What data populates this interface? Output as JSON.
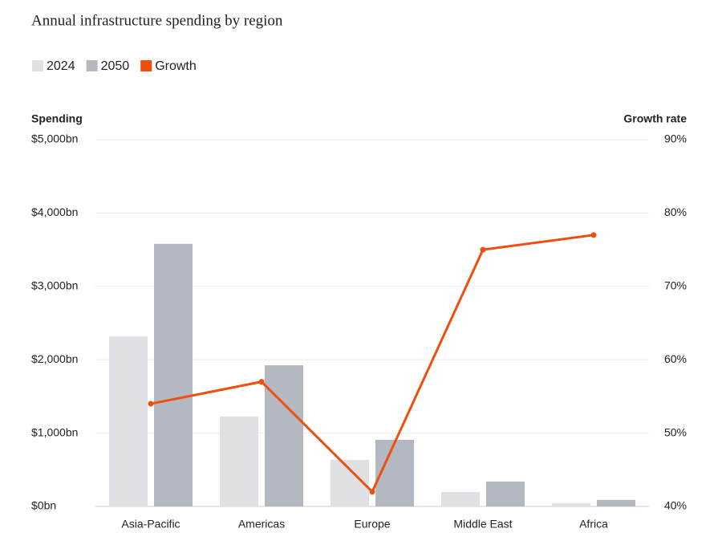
{
  "chart_data": {
    "type": "bar_line",
    "title": "Annual infrastructure spending by region",
    "y_label": "Spending",
    "y2_label": "Growth rate",
    "categories": [
      "Asia-Pacific",
      "Americas",
      "Europe",
      "Middle East",
      "Africa"
    ],
    "series": [
      {
        "name": "2024",
        "type": "bar",
        "color": "#dfe1e4",
        "values": [
          2320,
          1225,
          635,
          197,
          45
        ]
      },
      {
        "name": "2050",
        "type": "bar",
        "color": "#b4b8c0",
        "values": [
          3580,
          1925,
          908,
          340,
          90
        ]
      },
      {
        "name": "Growth",
        "type": "line",
        "axis": "y2",
        "color": "#f04e0e",
        "values": [
          54,
          57,
          42,
          75,
          77
        ]
      }
    ],
    "ylim": [
      0,
      5000
    ],
    "yticks": [
      {
        "value": 0,
        "label": "$0bn"
      },
      {
        "value": 1000,
        "label": "$1,000bn"
      },
      {
        "value": 2000,
        "label": "$2,000bn"
      },
      {
        "value": 3000,
        "label": "$3,000bn"
      },
      {
        "value": 4000,
        "label": "$4,000bn"
      },
      {
        "value": 5000,
        "label": "$5,000bn"
      }
    ],
    "y2lim": [
      40,
      90
    ],
    "y2ticks": [
      {
        "value": 40,
        "label": "40%"
      },
      {
        "value": 50,
        "label": "50%"
      },
      {
        "value": 60,
        "label": "60%"
      },
      {
        "value": 70,
        "label": "70%"
      },
      {
        "value": 80,
        "label": "80%"
      },
      {
        "value": 90,
        "label": "90%"
      }
    ],
    "grid": true
  }
}
